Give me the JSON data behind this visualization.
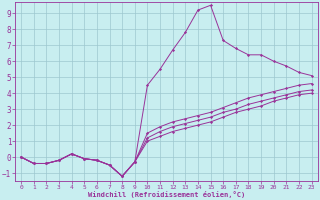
{
  "background_color": "#c8eef0",
  "grid_color": "#9dc8d0",
  "line_color": "#993399",
  "xlabel": "Windchill (Refroidissement éolien,°C)",
  "xlim": [
    -0.5,
    23.5
  ],
  "ylim": [
    -1.5,
    9.7
  ],
  "xticks": [
    0,
    1,
    2,
    3,
    4,
    5,
    6,
    7,
    8,
    9,
    10,
    11,
    12,
    13,
    14,
    15,
    16,
    17,
    18,
    19,
    20,
    21,
    22,
    23
  ],
  "yticks": [
    -1,
    0,
    1,
    2,
    3,
    4,
    5,
    6,
    7,
    8,
    9
  ],
  "hours": [
    0,
    1,
    2,
    3,
    4,
    5,
    6,
    7,
    8,
    9,
    10,
    11,
    12,
    13,
    14,
    15,
    16,
    17,
    18,
    19,
    20,
    21,
    22,
    23
  ],
  "curve1": [
    0.0,
    -0.4,
    -0.4,
    -0.2,
    0.2,
    -0.1,
    -0.2,
    -0.5,
    -1.2,
    -0.3,
    4.5,
    5.5,
    6.7,
    7.8,
    9.2,
    9.5,
    7.3,
    6.8,
    6.4,
    6.4,
    6.0,
    5.7,
    5.3,
    5.1
  ],
  "curve2": [
    0.0,
    -0.4,
    -0.4,
    -0.2,
    0.2,
    -0.1,
    -0.2,
    -0.5,
    -1.2,
    -0.3,
    1.5,
    1.9,
    2.2,
    2.4,
    2.6,
    2.8,
    3.1,
    3.4,
    3.7,
    3.9,
    4.1,
    4.3,
    4.5,
    4.6
  ],
  "curve3": [
    0.0,
    -0.4,
    -0.4,
    -0.2,
    0.2,
    -0.1,
    -0.2,
    -0.5,
    -1.2,
    -0.3,
    1.2,
    1.6,
    1.9,
    2.1,
    2.3,
    2.5,
    2.8,
    3.0,
    3.3,
    3.5,
    3.7,
    3.9,
    4.1,
    4.2
  ],
  "curve4": [
    0.0,
    -0.4,
    -0.4,
    -0.2,
    0.2,
    -0.1,
    -0.2,
    -0.5,
    -1.2,
    -0.3,
    1.0,
    1.3,
    1.6,
    1.8,
    2.0,
    2.2,
    2.5,
    2.8,
    3.0,
    3.2,
    3.5,
    3.7,
    3.9,
    4.0
  ]
}
